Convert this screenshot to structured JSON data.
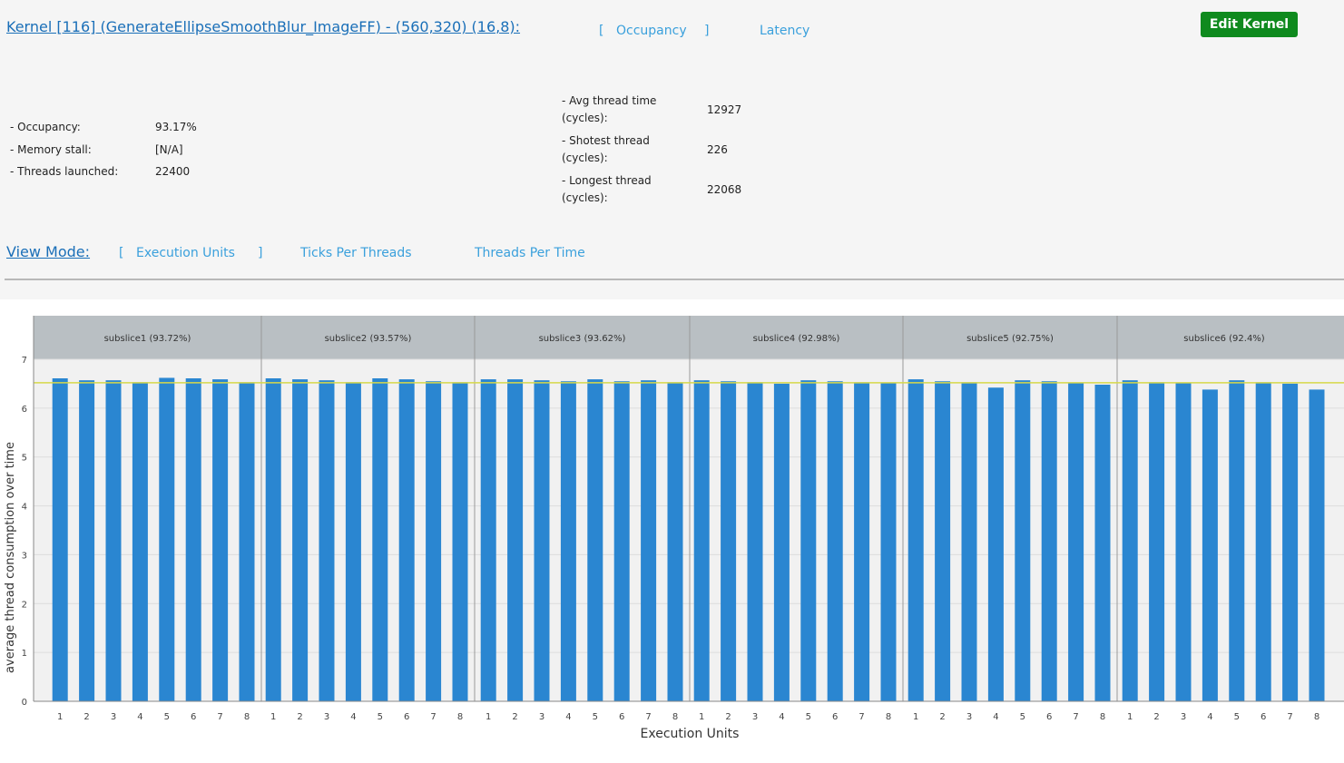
{
  "header": {
    "kernel_title": "Kernel [116] (GenerateEllipseSmoothBlur_ImageFF) - (560,320) (16,8):",
    "tabs": [
      {
        "label": "Occupancy",
        "selected": true
      },
      {
        "label": "Latency",
        "selected": false
      }
    ],
    "edit_button": "Edit Kernel",
    "bracket_open": "[",
    "bracket_close": "]"
  },
  "stats_left": [
    {
      "label": "- Occupancy:",
      "value": "93.17%"
    },
    {
      "label": "- Memory stall:",
      "value": "[N/A]"
    },
    {
      "label": "- Threads launched:",
      "value": "22400"
    }
  ],
  "stats_right": [
    {
      "label1": "- Avg thread time",
      "label2": "(cycles):",
      "value": "12927"
    },
    {
      "label1": "- Shotest thread",
      "label2": "(cycles):",
      "value": "226"
    },
    {
      "label1": "- Longest thread",
      "label2": "(cycles):",
      "value": "22068"
    }
  ],
  "view_mode": {
    "label": "View Mode:",
    "options": [
      {
        "label": "Execution Units",
        "selected": true
      },
      {
        "label": "Ticks Per Threads",
        "selected": false
      },
      {
        "label": "Threads Per Time",
        "selected": false
      }
    ]
  },
  "colors": {
    "bar": "#2a86d1",
    "average_line": "#d6d84a",
    "group_header": "#b9bfc3",
    "accent": "#3aa0dc",
    "button": "#0f8a1e"
  },
  "chart_data": {
    "type": "bar",
    "xlabel": "Execution Units",
    "ylabel": "average thread consumption over time",
    "ylim": [
      0,
      7
    ],
    "yticks": [
      "0",
      "1",
      "2",
      "3",
      "4",
      "5",
      "6",
      "7"
    ],
    "grid": true,
    "average_line": 6.52,
    "groups": [
      {
        "name": "subslice1 (93.72%)",
        "categories": [
          "1",
          "2",
          "3",
          "4",
          "5",
          "6",
          "7",
          "8"
        ],
        "values": [
          6.61,
          6.57,
          6.57,
          6.53,
          6.62,
          6.61,
          6.59,
          6.53
        ]
      },
      {
        "name": "subslice2 (93.57%)",
        "categories": [
          "1",
          "2",
          "3",
          "4",
          "5",
          "6",
          "7",
          "8"
        ],
        "values": [
          6.61,
          6.59,
          6.57,
          6.53,
          6.61,
          6.59,
          6.55,
          6.53
        ]
      },
      {
        "name": "subslice3 (93.62%)",
        "categories": [
          "1",
          "2",
          "3",
          "4",
          "5",
          "6",
          "7",
          "8"
        ],
        "values": [
          6.59,
          6.59,
          6.57,
          6.55,
          6.59,
          6.55,
          6.57,
          6.53
        ]
      },
      {
        "name": "subslice4 (92.98%)",
        "categories": [
          "1",
          "2",
          "3",
          "4",
          "5",
          "6",
          "7",
          "8"
        ],
        "values": [
          6.57,
          6.55,
          6.53,
          6.5,
          6.57,
          6.55,
          6.53,
          6.51
        ]
      },
      {
        "name": "subslice5 (92.75%)",
        "categories": [
          "1",
          "2",
          "3",
          "4",
          "5",
          "6",
          "7",
          "8"
        ],
        "values": [
          6.59,
          6.55,
          6.53,
          6.42,
          6.57,
          6.55,
          6.51,
          6.48
        ]
      },
      {
        "name": "subslice6 (92.4%)",
        "categories": [
          "1",
          "2",
          "3",
          "4",
          "5",
          "6",
          "7",
          "8"
        ],
        "values": [
          6.57,
          6.53,
          6.51,
          6.38,
          6.57,
          6.53,
          6.5,
          6.38
        ]
      }
    ]
  }
}
